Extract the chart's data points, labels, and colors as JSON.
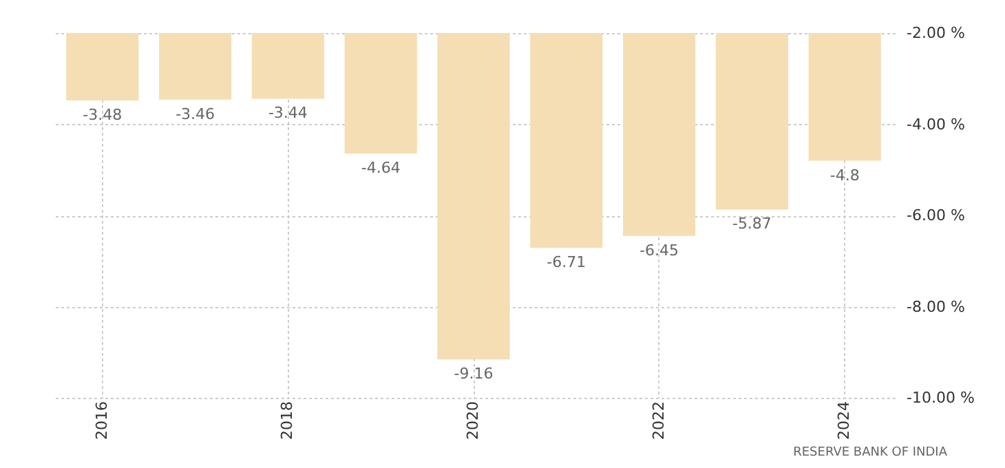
{
  "chart_data": {
    "type": "bar",
    "categories": [
      "2016",
      null,
      "2018",
      null,
      "2020",
      null,
      "2022",
      null,
      "2024"
    ],
    "values": [
      -3.48,
      -3.46,
      -3.44,
      -4.64,
      -9.16,
      -6.71,
      -6.45,
      -5.87,
      -4.8
    ],
    "color": "#f5deb3",
    "ylim": [
      -10,
      -2
    ],
    "yticks": [
      {
        "value": -10,
        "label": "-10.00 %"
      },
      {
        "value": -8,
        "label": "-8.00 %"
      },
      {
        "value": -6,
        "label": "-6.00 %"
      },
      {
        "value": -4,
        "label": "-4.00 %"
      },
      {
        "value": -2,
        "label": "-2.00 %"
      }
    ],
    "grid": true,
    "data_labels": true,
    "annotations": [
      "RESERVE BANK OF INDIA"
    ]
  }
}
